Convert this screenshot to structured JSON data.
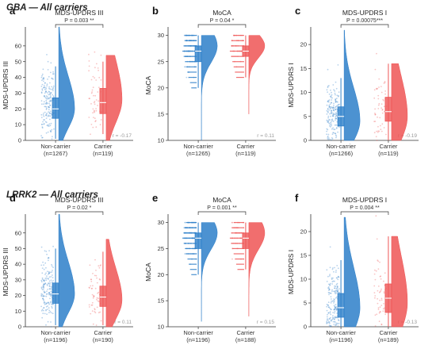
{
  "figure": {
    "rows": [
      {
        "title": "GBA — All carriers"
      },
      {
        "title": "LRRK2 — All carriers"
      }
    ],
    "colors": {
      "noncarrier": "#2d7fc9",
      "carrier": "#ee5555"
    }
  },
  "chart_data": [
    {
      "type": "raincloud",
      "letter": "a",
      "title": "MDS-UPDRS III",
      "ylabel": "MDS-UPDRS III",
      "ylim": [
        0,
        70
      ],
      "ticks": [
        0,
        10,
        20,
        30,
        40,
        50,
        60
      ],
      "categories": [
        "Non-carrier",
        "Carrier"
      ],
      "n_labels": [
        "(n=1267)",
        "(n=119)"
      ],
      "p_label": "P = 0.003 **",
      "r_label": "r = -0.17",
      "groups": [
        {
          "name": "Non-carrier",
          "median": 20,
          "q1": 14,
          "q3": 27,
          "whisker_low": 1,
          "whisker_high": 47,
          "mode": 20,
          "max": 72
        },
        {
          "name": "Carrier",
          "median": 24,
          "q1": 17,
          "q3": 33,
          "whisker_low": 4,
          "whisker_high": 50,
          "mode": 26,
          "max": 54
        }
      ]
    },
    {
      "type": "raincloud",
      "letter": "b",
      "title": "MoCA",
      "ylabel": "MoCA",
      "ylim": [
        10,
        31
      ],
      "ticks": [
        10,
        15,
        20,
        25,
        30
      ],
      "categories": [
        "Non-carrier",
        "Carrier"
      ],
      "n_labels": [
        "(n=1265)",
        "(n=119)"
      ],
      "p_label": "P = 0.04 *",
      "r_label": "r = 0.11",
      "groups": [
        {
          "name": "Non-carrier",
          "median": 27,
          "q1": 25,
          "q3": 28,
          "whisker_low": 20,
          "whisker_high": 30,
          "mode": 28,
          "min": 10
        },
        {
          "name": "Carrier",
          "median": 27,
          "q1": 26,
          "q3": 28,
          "whisker_low": 22,
          "whisker_high": 30,
          "mode": 28,
          "min": 15
        }
      ]
    },
    {
      "type": "raincloud",
      "letter": "c",
      "title": "MDS-UPDRS I",
      "ylabel": "MDS-UPDRS I",
      "ylim": [
        0,
        23
      ],
      "ticks": [
        0,
        5,
        10,
        15,
        20
      ],
      "categories": [
        "Non-carrier",
        "Carrier"
      ],
      "n_labels": [
        "(n=1266)",
        "(n=119)"
      ],
      "p_label": "P = 0.00075***",
      "r_label": "r = -0.19",
      "groups": [
        {
          "name": "Non-carrier",
          "median": 5,
          "q1": 3,
          "q3": 7,
          "whisker_low": 0,
          "whisker_high": 13,
          "mode": 4,
          "max": 23
        },
        {
          "name": "Carrier",
          "median": 6,
          "q1": 4,
          "q3": 9,
          "whisker_low": 0,
          "whisker_high": 16,
          "mode": 5,
          "max": 16
        }
      ]
    },
    {
      "type": "raincloud",
      "letter": "d",
      "title": "MDS-UPDRS III",
      "ylabel": "MDS-UPDRS III",
      "ylim": [
        0,
        70
      ],
      "ticks": [
        0,
        10,
        20,
        30,
        40,
        50,
        60
      ],
      "categories": [
        "Non-carrier",
        "Carrier"
      ],
      "n_labels": [
        "(n=1196)",
        "(n=190)"
      ],
      "p_label": "P = 0.02 *",
      "r_label": "r = 0.11",
      "groups": [
        {
          "name": "Non-carrier",
          "median": 21,
          "q1": 15,
          "q3": 28,
          "whisker_low": 1,
          "whisker_high": 50,
          "mode": 21,
          "max": 72
        },
        {
          "name": "Carrier",
          "median": 19,
          "q1": 13,
          "q3": 26,
          "whisker_low": 1,
          "whisker_high": 48,
          "mode": 17,
          "max": 56
        }
      ]
    },
    {
      "type": "raincloud",
      "letter": "e",
      "title": "MoCA",
      "ylabel": "MoCA",
      "ylim": [
        10,
        31
      ],
      "ticks": [
        10,
        15,
        20,
        25,
        30
      ],
      "categories": [
        "Non-carrier",
        "Carrier"
      ],
      "n_labels": [
        "(n=1196)",
        "(n=188)"
      ],
      "p_label": "P = 0.001 **",
      "r_label": "r = 0.15",
      "groups": [
        {
          "name": "Non-carrier",
          "median": 27,
          "q1": 25,
          "q3": 28,
          "whisker_low": 20,
          "whisker_high": 30,
          "mode": 28,
          "min": 11
        },
        {
          "name": "Carrier",
          "median": 27,
          "q1": 25,
          "q3": 28,
          "whisker_low": 21,
          "whisker_high": 30,
          "mode": 28,
          "min": 12
        }
      ]
    },
    {
      "type": "raincloud",
      "letter": "f",
      "title": "MDS-UPDRS I",
      "ylabel": "MDS-UPDRS I",
      "ylim": [
        0,
        23
      ],
      "ticks": [
        0,
        5,
        10,
        15,
        20
      ],
      "categories": [
        "Non-carrier",
        "Carrier"
      ],
      "n_labels": [
        "(n=1196)",
        "(n=189)"
      ],
      "p_label": "P = 0.004 **",
      "r_label": "r = -0.13",
      "groups": [
        {
          "name": "Non-carrier",
          "median": 4,
          "q1": 2,
          "q3": 7,
          "whisker_low": 0,
          "whisker_high": 14,
          "mode": 4,
          "max": 23
        },
        {
          "name": "Carrier",
          "median": 6,
          "q1": 3,
          "q3": 9,
          "whisker_low": 0,
          "whisker_high": 19,
          "mode": 5,
          "max": 19
        }
      ]
    }
  ]
}
